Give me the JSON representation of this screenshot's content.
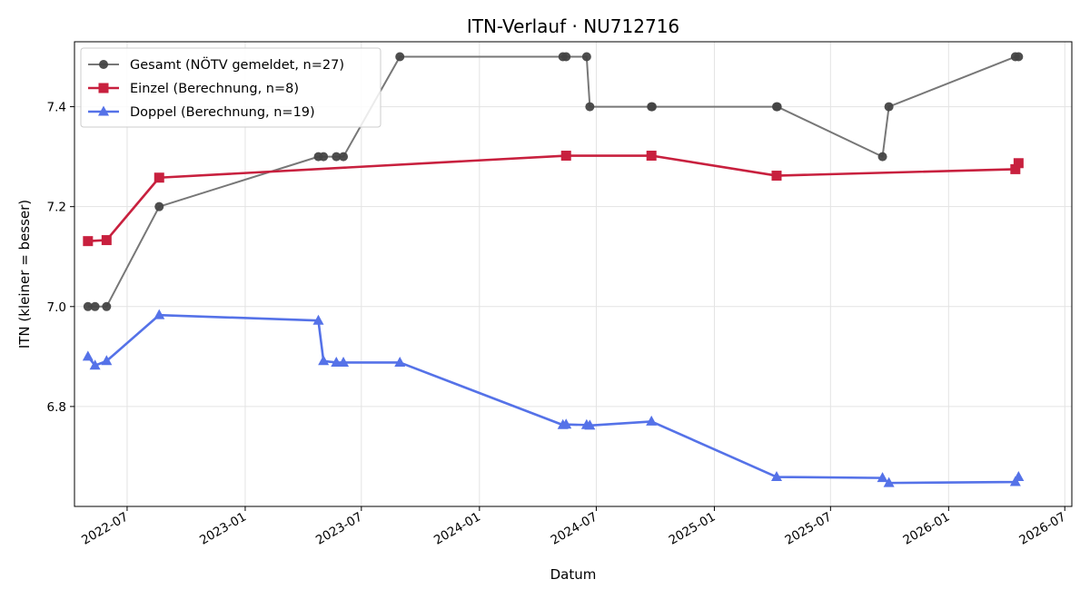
{
  "chart_data": {
    "type": "line",
    "title": "ITN-Verlauf · NU712716",
    "xlabel": "Datum",
    "ylabel": "ITN  (kleiner = besser)",
    "xlim": [
      "2022-04-10",
      "2026-07-12"
    ],
    "ylim": [
      6.6,
      7.53
    ],
    "x_ticks": [
      "2022-07",
      "2023-01",
      "2023-07",
      "2024-01",
      "2024-07",
      "2025-01",
      "2025-07",
      "2026-01",
      "2026-07"
    ],
    "y_ticks": [
      6.8,
      7.0,
      7.2,
      7.4
    ],
    "y_tick_labels": [
      "6.8",
      "7.0",
      "7.2",
      "7.4"
    ],
    "grid": true,
    "legend_position": "top-left",
    "series": [
      {
        "name": "Gesamt (NÖTV gemeldet, n=27)",
        "color": "#777777",
        "marker": "circle",
        "points": [
          {
            "x": "2022-05-01",
            "y": 7.0
          },
          {
            "x": "2022-05-12",
            "y": 7.0
          },
          {
            "x": "2022-05-30",
            "y": 7.0
          },
          {
            "x": "2022-08-20",
            "y": 7.2
          },
          {
            "x": "2023-04-25",
            "y": 7.3
          },
          {
            "x": "2023-05-03",
            "y": 7.3
          },
          {
            "x": "2023-05-23",
            "y": 7.3
          },
          {
            "x": "2023-06-03",
            "y": 7.3
          },
          {
            "x": "2023-08-30",
            "y": 7.5
          },
          {
            "x": "2024-05-10",
            "y": 7.5
          },
          {
            "x": "2024-05-15",
            "y": 7.5
          },
          {
            "x": "2024-06-16",
            "y": 7.5
          },
          {
            "x": "2024-06-21",
            "y": 7.4
          },
          {
            "x": "2024-09-25",
            "y": 7.4
          },
          {
            "x": "2024-09-26",
            "y": 7.4
          },
          {
            "x": "2025-04-08",
            "y": 7.4
          },
          {
            "x": "2025-04-09",
            "y": 7.4
          },
          {
            "x": "2025-09-20",
            "y": 7.3
          },
          {
            "x": "2025-09-30",
            "y": 7.4
          },
          {
            "x": "2026-04-15",
            "y": 7.5
          },
          {
            "x": "2026-04-20",
            "y": 7.5
          }
        ]
      },
      {
        "name": "Einzel (Berechnung, n=8)",
        "color": "#c8203e",
        "marker": "square",
        "points": [
          {
            "x": "2022-05-01",
            "y": 7.131
          },
          {
            "x": "2022-05-30",
            "y": 7.133
          },
          {
            "x": "2022-08-20",
            "y": 7.258
          },
          {
            "x": "2024-05-15",
            "y": 7.302
          },
          {
            "x": "2024-09-25",
            "y": 7.302
          },
          {
            "x": "2025-04-08",
            "y": 7.262
          },
          {
            "x": "2026-04-15",
            "y": 7.275
          },
          {
            "x": "2026-04-20",
            "y": 7.287
          }
        ]
      },
      {
        "name": "Doppel (Berechnung, n=19)",
        "color": "#5572e8",
        "marker": "triangle",
        "points": [
          {
            "x": "2022-05-01",
            "y": 6.9
          },
          {
            "x": "2022-05-12",
            "y": 6.882
          },
          {
            "x": "2022-05-30",
            "y": 6.891
          },
          {
            "x": "2022-08-20",
            "y": 6.983
          },
          {
            "x": "2023-04-25",
            "y": 6.972
          },
          {
            "x": "2023-05-03",
            "y": 6.891
          },
          {
            "x": "2023-05-23",
            "y": 6.888
          },
          {
            "x": "2023-06-03",
            "y": 6.888
          },
          {
            "x": "2023-08-30",
            "y": 6.888
          },
          {
            "x": "2024-05-10",
            "y": 6.763
          },
          {
            "x": "2024-05-15",
            "y": 6.764
          },
          {
            "x": "2024-06-16",
            "y": 6.763
          },
          {
            "x": "2024-06-21",
            "y": 6.762
          },
          {
            "x": "2024-09-25",
            "y": 6.77
          },
          {
            "x": "2025-04-08",
            "y": 6.659
          },
          {
            "x": "2025-09-20",
            "y": 6.657
          },
          {
            "x": "2025-09-30",
            "y": 6.647
          },
          {
            "x": "2026-04-15",
            "y": 6.649
          },
          {
            "x": "2026-04-20",
            "y": 6.659
          }
        ]
      }
    ]
  }
}
